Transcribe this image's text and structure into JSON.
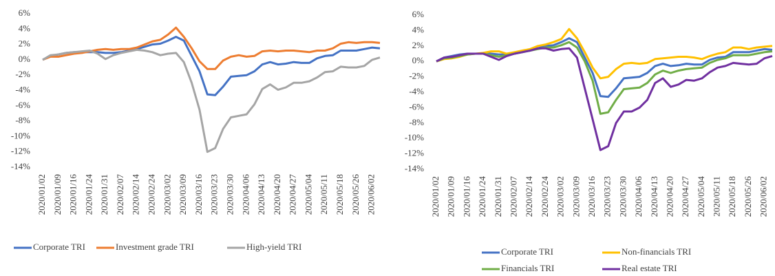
{
  "chart_data": [
    {
      "type": "line",
      "legend": "bottom",
      "categories": [
        "2020/01/02",
        null,
        "2020/01/09",
        null,
        "2020/01/16",
        null,
        "2020/01/24",
        null,
        "2020/01/31",
        null,
        "2020/02/07",
        null,
        "2020/02/14",
        null,
        "2020/02/24",
        null,
        "2020/03/02",
        null,
        "2020/03/09",
        null,
        "2020/03/16",
        null,
        "2020/03/23",
        null,
        "2020/03/30",
        null,
        "2020/04/06",
        null,
        "2020/04/13",
        null,
        "2020/04/20",
        null,
        "2020/04/27",
        null,
        "2020/05/04",
        null,
        "2020/05/11",
        null,
        "2020/05/18",
        null,
        "2020/05/26",
        null,
        "2020/06/02",
        null
      ],
      "ylim": [
        -14,
        6
      ],
      "yticks": [
        {
          "value": -14,
          "label": "-14%"
        },
        {
          "value": -12,
          "label": "-12%"
        },
        {
          "value": -10,
          "label": "-10%"
        },
        {
          "value": -8,
          "label": "-8%"
        },
        {
          "value": -6,
          "label": "-6%"
        },
        {
          "value": -4,
          "label": "-4%"
        },
        {
          "value": -2,
          "label": "-2%"
        },
        {
          "value": 0,
          "label": "0%"
        },
        {
          "value": 2,
          "label": "2%"
        },
        {
          "value": 4,
          "label": "4%"
        },
        {
          "value": 6,
          "label": "6%"
        }
      ],
      "series": [
        {
          "name": "Corporate TRI",
          "color": "#4472c4",
          "values": [
            0,
            0.5,
            0.7,
            0.9,
            1.0,
            1.0,
            1.0,
            1.0,
            0.9,
            0.9,
            1.0,
            1.2,
            1.4,
            1.7,
            2.0,
            2.1,
            2.5,
            3.0,
            2.5,
            0.5,
            -1.5,
            -4.5,
            -4.6,
            -3.5,
            -2.2,
            -2.1,
            -2.0,
            -1.5,
            -0.6,
            -0.3,
            -0.6,
            -0.5,
            -0.3,
            -0.4,
            -0.4,
            0.2,
            0.5,
            0.6,
            1.2,
            1.2,
            1.2,
            1.4,
            1.6,
            1.5
          ]
        },
        {
          "name": "Investment grade TRI",
          "color": "#ed7d31",
          "values": [
            0,
            0.4,
            0.4,
            0.6,
            0.8,
            0.9,
            1.1,
            1.3,
            1.4,
            1.3,
            1.4,
            1.4,
            1.6,
            2.0,
            2.4,
            2.6,
            3.3,
            4.2,
            3.0,
            1.5,
            -0.2,
            -1.2,
            -1.2,
            -0.1,
            0.4,
            0.6,
            0.4,
            0.5,
            1.1,
            1.2,
            1.1,
            1.2,
            1.2,
            1.1,
            1.0,
            1.2,
            1.2,
            1.5,
            2.1,
            2.3,
            2.2,
            2.3,
            2.3,
            2.2
          ]
        },
        {
          "name": "High-yield TRI",
          "color": "#a5a5a5",
          "values": [
            0,
            0.6,
            0.7,
            0.9,
            1.0,
            1.1,
            1.2,
            0.8,
            0.1,
            0.6,
            0.9,
            1.1,
            1.3,
            1.2,
            1.0,
            0.6,
            0.8,
            0.9,
            -0.3,
            -3.0,
            -6.5,
            -12,
            -11.5,
            -9,
            -7.5,
            -7.3,
            -7.1,
            -5.8,
            -3.8,
            -3.2,
            -3.9,
            -3.6,
            -3.0,
            -3.0,
            -2.8,
            -2.3,
            -1.6,
            -1.5,
            -0.9,
            -1.0,
            -1.0,
            -0.8,
            0.0,
            0.3
          ]
        }
      ]
    },
    {
      "type": "line",
      "legend": "bottom",
      "categories": [
        "2020/01/02",
        null,
        "2020/01/09",
        null,
        "2020/01/16",
        null,
        "2020/01/24",
        null,
        "2020/01/31",
        null,
        "2020/02/07",
        null,
        "2020/02/14",
        null,
        "2020/02/24",
        null,
        "2020/03/02",
        null,
        "2020/03/09",
        null,
        "2020/03/16",
        null,
        "2020/03/23",
        null,
        "2020/03/30",
        null,
        "2020/04/06",
        null,
        "2020/04/13",
        null,
        "2020/04/20",
        null,
        "2020/04/27",
        null,
        "2020/05/04",
        null,
        "2020/05/11",
        null,
        "2020/05/18",
        null,
        "2020/05/26",
        null,
        "2020/06/02",
        null
      ],
      "ylim": [
        -14,
        6
      ],
      "yticks": [
        {
          "value": -14,
          "label": "-14%"
        },
        {
          "value": -12,
          "label": "-12%"
        },
        {
          "value": -10,
          "label": "-10%"
        },
        {
          "value": -8,
          "label": "-8%"
        },
        {
          "value": -6,
          "label": "-6%"
        },
        {
          "value": -4,
          "label": "-4%"
        },
        {
          "value": -2,
          "label": "-2%"
        },
        {
          "value": 0,
          "label": "0%"
        },
        {
          "value": 2,
          "label": "2%"
        },
        {
          "value": 4,
          "label": "4%"
        },
        {
          "value": 6,
          "label": "6%"
        }
      ],
      "series": [
        {
          "name": "Corporate TRI",
          "color": "#4472c4",
          "values": [
            0,
            0.5,
            0.7,
            0.9,
            1.0,
            1.0,
            1.0,
            1.0,
            0.9,
            0.9,
            1.0,
            1.2,
            1.4,
            1.7,
            2.0,
            2.1,
            2.5,
            3.0,
            2.5,
            0.5,
            -1.5,
            -4.5,
            -4.6,
            -3.5,
            -2.2,
            -2.1,
            -2.0,
            -1.5,
            -0.6,
            -0.3,
            -0.6,
            -0.5,
            -0.3,
            -0.4,
            -0.4,
            0.2,
            0.5,
            0.6,
            1.2,
            1.2,
            1.2,
            1.4,
            1.6,
            1.5
          ]
        },
        {
          "name": "Non-financials TRI",
          "color": "#ffc000",
          "values": [
            0,
            0.3,
            0.4,
            0.6,
            0.9,
            1.0,
            1.1,
            1.3,
            1.3,
            1.0,
            1.2,
            1.4,
            1.6,
            2.0,
            2.2,
            2.5,
            2.9,
            4.2,
            3.0,
            1.2,
            -0.8,
            -2.2,
            -2.0,
            -1.0,
            -0.3,
            -0.2,
            -0.3,
            -0.2,
            0.3,
            0.4,
            0.5,
            0.6,
            0.6,
            0.5,
            0.3,
            0.7,
            1.0,
            1.2,
            1.8,
            1.8,
            1.6,
            1.8,
            1.9,
            2.0
          ]
        },
        {
          "name": "Financials TRI",
          "color": "#70ad47",
          "values": [
            0,
            0.4,
            0.5,
            0.7,
            0.9,
            1.0,
            1.0,
            0.8,
            0.6,
            0.8,
            1.0,
            1.2,
            1.4,
            1.6,
            1.8,
            1.8,
            2.1,
            2.5,
            1.8,
            0,
            -2.5,
            -6.8,
            -6.6,
            -5.0,
            -3.6,
            -3.5,
            -3.4,
            -2.8,
            -1.7,
            -1.2,
            -1.5,
            -1.2,
            -1.0,
            -0.9,
            -0.8,
            -0.2,
            0.2,
            0.4,
            0.8,
            0.8,
            0.8,
            1.0,
            1.2,
            1.3
          ]
        },
        {
          "name": "Real estate TRI",
          "color": "#7030a0",
          "values": [
            0,
            0.5,
            0.6,
            0.8,
            1.0,
            1.0,
            1.0,
            0.6,
            0.2,
            0.7,
            1.0,
            1.2,
            1.4,
            1.7,
            1.7,
            1.4,
            1.6,
            1.7,
            0.5,
            -3.5,
            -7.5,
            -11.5,
            -11,
            -8,
            -6.5,
            -6.5,
            -6.0,
            -5.0,
            -2.8,
            -2.2,
            -3.3,
            -3.0,
            -2.4,
            -2.5,
            -2.2,
            -1.4,
            -0.8,
            -0.6,
            -0.2,
            -0.3,
            -0.4,
            -0.3,
            0.4,
            0.7
          ]
        }
      ]
    }
  ]
}
